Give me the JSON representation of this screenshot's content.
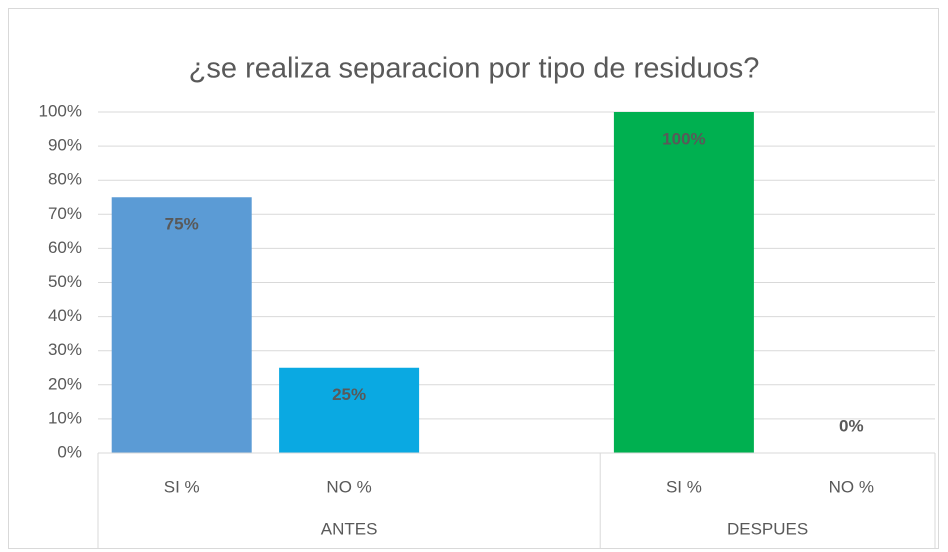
{
  "chart_data": {
    "type": "bar",
    "title": "¿se realiza separacion por tipo de residuos?",
    "ylim": [
      0,
      100
    ],
    "yticks": [
      {
        "value": 0,
        "label": "0%"
      },
      {
        "value": 10,
        "label": "10%"
      },
      {
        "value": 20,
        "label": "20%"
      },
      {
        "value": 30,
        "label": "30%"
      },
      {
        "value": 40,
        "label": "40%"
      },
      {
        "value": 50,
        "label": "50%"
      },
      {
        "value": 60,
        "label": "60%"
      },
      {
        "value": 70,
        "label": "70%"
      },
      {
        "value": 80,
        "label": "80%"
      },
      {
        "value": 90,
        "label": "90%"
      },
      {
        "value": 100,
        "label": "100%"
      }
    ],
    "grid": true,
    "groups": [
      {
        "label": "ANTES",
        "categories": [
          "SI %",
          "NO %",
          null
        ],
        "values": [
          75,
          25,
          null
        ],
        "value_labels": [
          "75%",
          "25%",
          null
        ],
        "colors": [
          "#5b9bd5",
          "#0aa9e2",
          null
        ]
      },
      {
        "label": "DESPUES",
        "categories": [
          "SI %",
          "NO %"
        ],
        "values": [
          100,
          0
        ],
        "value_labels": [
          "100%",
          "0%"
        ],
        "colors": [
          "#00b050",
          "#7f7f7f"
        ]
      }
    ]
  }
}
